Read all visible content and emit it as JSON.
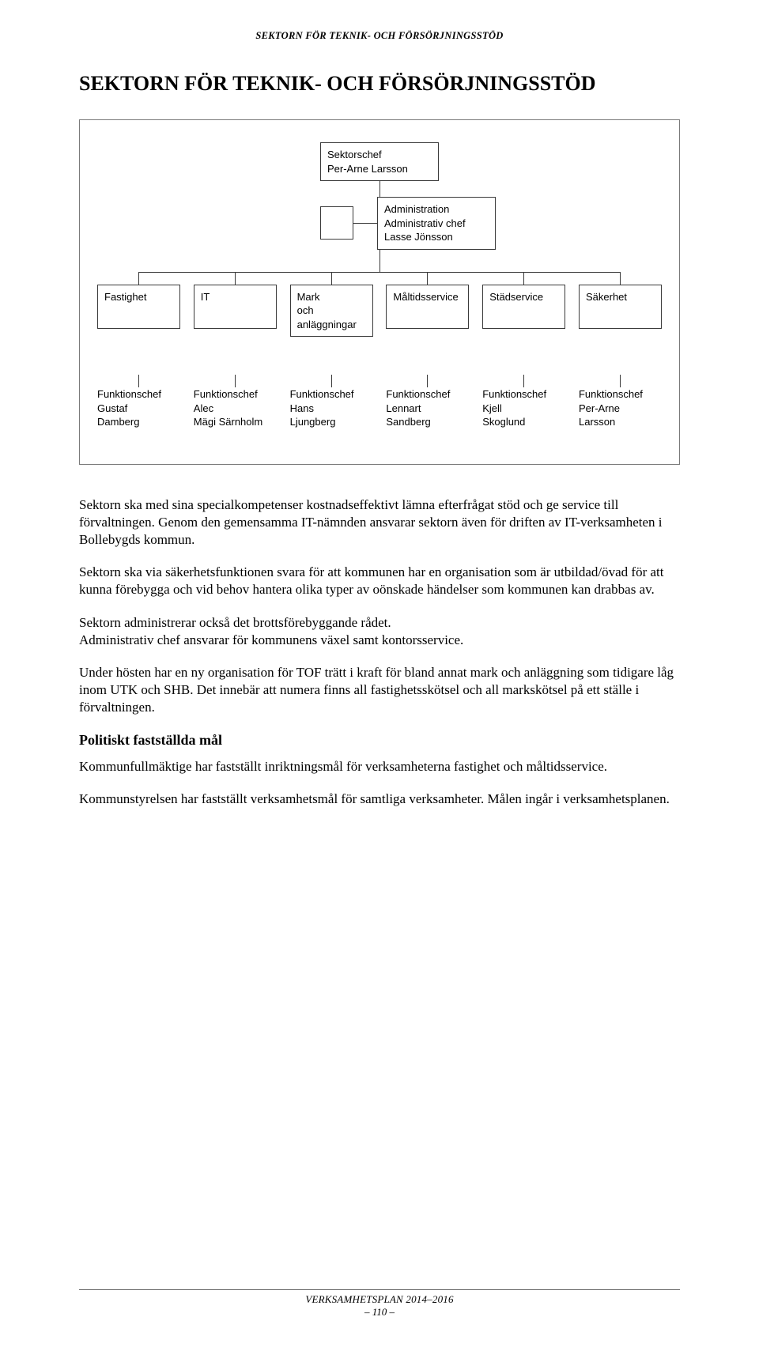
{
  "running_header": "SEKTORN FÖR TEKNIK- OCH FÖRSÖRJNINGSSTÖD",
  "doc_title": "SEKTORN FÖR TEKNIK- OCH FÖRSÖRJNINGSSTÖD",
  "org": {
    "sector_chief": {
      "title": "Sektorschef",
      "name": "Per-Arne Larsson"
    },
    "admin": {
      "title": "Administration",
      "subtitle": "Administrativ chef",
      "name": "Lasse Jönsson"
    },
    "departments": [
      {
        "label": "Fastighet"
      },
      {
        "label": "IT"
      },
      {
        "label": "Mark\noch\nanläggningar"
      },
      {
        "label": "Måltidsservice"
      },
      {
        "label": "Städservice"
      },
      {
        "label": "Säkerhet"
      }
    ],
    "chiefs": [
      {
        "title": "Funktionschef",
        "first": "Gustaf",
        "last": "Damberg"
      },
      {
        "title": "Funktionschef",
        "first": "Alec",
        "last": "Mägi Särnholm"
      },
      {
        "title": "Funktionschef",
        "first": "Hans",
        "last": "Ljungberg"
      },
      {
        "title": "Funktionschef",
        "first": "Lennart",
        "last": "Sandberg"
      },
      {
        "title": "Funktionschef",
        "first": "Kjell",
        "last": "Skoglund"
      },
      {
        "title": "Funktionschef",
        "first": "Per-Arne",
        "last": "Larsson"
      }
    ]
  },
  "body": {
    "p1": "Sektorn ska med sina specialkompetenser kostnadseffektivt lämna efterfrågat stöd och ge service till förvaltningen. Genom den gemensamma IT-nämnden ansvarar sektorn även för driften av IT-verksamheten i Bollebygds kommun.",
    "p2": "Sektorn ska via säkerhetsfunktionen svara för att kommunen har en organisation som är utbildad/övad för att kunna förebygga och vid behov hantera olika typer av oönskade händelser som kommunen kan drabbas av.",
    "p3a": "Sektorn administrerar också det brottsförebyggande rådet.",
    "p3b": "Administrativ chef ansvarar för kommunens växel samt kontorsservice.",
    "p4": "Under hösten har en ny organisation för TOF trätt i kraft för bland annat mark och anläggning som tidigare låg inom UTK och SHB. Det innebär att numera finns all fastighetsskötsel och all markskötsel på ett ställe i förvaltningen.",
    "h3": "Politiskt fastställda mål",
    "p5": "Kommunfullmäktige har fastställt inriktningsmål för verksamheterna fastighet och måltidsservice.",
    "p6": "Kommunstyrelsen har fastställt verksamhetsmål för samtliga verksamheter. Målen ingår i verksamhetsplanen."
  },
  "footer": {
    "title": "VERKSAMHETSPLAN 2014–2016",
    "page": "– 110 –"
  },
  "style": {
    "hline_left_pct": 7.3,
    "hline_right_pct": 7.3
  }
}
